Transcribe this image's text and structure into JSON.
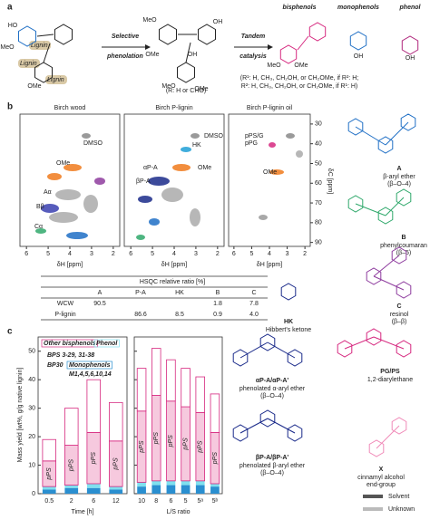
{
  "panel_a": {
    "label": "a",
    "lignin_tags": [
      "Lignin",
      "Lignin",
      "Lignin"
    ],
    "arrow1": [
      "Selective",
      "phenolation"
    ],
    "arrow2": [
      "Tandem",
      "catalysis"
    ],
    "r_note": "(R: H or CHO)",
    "products": [
      "bisphenols",
      "monophenols",
      "phenol"
    ],
    "substituent_note": [
      "(R¹: H, CH₃, CH₂OH, or CH₂OMe, if R²: H;",
      "R²: H, CH₃, CH₂OH, or CH₂OMe, if R¹: H)"
    ],
    "atoms": [
      "HO",
      "MeO",
      "OMe",
      "MeO",
      "OMe",
      "OH",
      "MeO",
      "OMe",
      "OH",
      "MeO",
      "OMe",
      "OH",
      "OH"
    ]
  },
  "panel_b": {
    "label": "b",
    "titles": [
      "Birch wood",
      "Birch P-lignin",
      "Birch P-lignin oil"
    ],
    "x_label": "δH [ppm]",
    "y_label": "δC [ppm]",
    "xlim": [
      6.3,
      1.7
    ],
    "xticks": [
      6,
      5,
      4,
      3,
      2
    ],
    "ylim": [
      25,
      92
    ],
    "yticks": [
      30,
      40,
      50,
      60,
      70,
      80,
      90
    ],
    "peak_tags": [
      [
        "DMSO",
        "OMe",
        "Aα",
        "Bβ",
        "Cα"
      ],
      [
        "αP-A",
        "βP-A",
        "HK",
        "OMe",
        "DMSO"
      ],
      [
        "pPS/G",
        "pPG",
        "OMe"
      ]
    ],
    "table": {
      "header": "HSQC relative ratio [%]",
      "columns": [
        "A",
        "P-A",
        "HK",
        "B",
        "C"
      ],
      "rows": [
        {
          "name": "WCW",
          "cells": [
            90.5,
            null,
            null,
            1.8,
            7.8
          ]
        },
        {
          "name": "P-lignin",
          "cells": [
            null,
            86.6,
            8.5,
            0.9,
            "4.0"
          ]
        }
      ]
    },
    "structures": [
      {
        "id": "A",
        "name": "β-aryl ether",
        "link": "(β–O–4)"
      },
      {
        "id": "B",
        "name": "phenylcoumaran",
        "link": "(β–5)"
      },
      {
        "id": "C",
        "name": "resinol",
        "link": "(β–β)"
      },
      {
        "id": "HK",
        "name": "Hibbert's ketone"
      },
      {
        "id": "PG/PS",
        "name": "1,2-diarylethane"
      },
      {
        "id": "X",
        "name": "cinnamyl alcohol",
        "link": "end-group"
      }
    ]
  },
  "panel_c": {
    "label": "c",
    "structures": [
      {
        "id": "αP-A/αP-A'",
        "name": "phenolated α-aryl ether",
        "link": "(β–O–4)"
      },
      {
        "id": "βP-A/βP-A'",
        "name": "phenolated β-aryl ether",
        "link": "(β–O–4)"
      }
    ],
    "legend2": [
      {
        "name": "Solvent",
        "color": "#555555"
      },
      {
        "name": "Unknown",
        "color": "#bbbbbb"
      }
    ]
  },
  "chart_data": {
    "type": "stacked_bar",
    "y_label": "Mass yield [wt%, g/g native lignin]",
    "ylim": [
      0,
      55
    ],
    "yticks": [
      0,
      10,
      20,
      30,
      40,
      50
    ],
    "x_labels": [
      "Time [h]",
      "L/S ratio"
    ],
    "categories": [
      [
        "0.5",
        "2",
        "6",
        "12"
      ],
      [
        "10",
        "8",
        "6",
        "5",
        "5ᵃ",
        "5ᵇ"
      ]
    ],
    "series": [
      {
        "name": "Monophenols",
        "color": "#2a8fd0",
        "values": [
          [
            1.5,
            2,
            2,
            1.5
          ],
          [
            2.5,
            3,
            3,
            3,
            3,
            2.5
          ]
        ]
      },
      {
        "name": "Phenol",
        "color": "#7fe0ef",
        "values": [
          [
            1,
            1,
            1.5,
            1
          ],
          [
            1.5,
            1.5,
            1.5,
            1.5,
            1.5,
            1
          ]
        ]
      },
      {
        "name": "BPS 3-29, 31-38",
        "color": "#f6c9de",
        "values": [
          [
            9,
            14,
            18,
            16
          ],
          [
            25,
            30,
            28,
            26,
            24,
            18
          ]
        ]
      },
      {
        "name": "Other bisphenols",
        "color": "#ffffff",
        "values": [
          [
            7.5,
            13,
            18.5,
            13.5
          ],
          [
            15,
            16.5,
            14.5,
            13.5,
            12.5,
            13.5
          ]
        ]
      }
    ],
    "legend_extra": [
      "BP30",
      "M1,4,5,6,10,14"
    ],
    "bar_annotation": "pPS",
    "edge_color": "#d6287f"
  }
}
